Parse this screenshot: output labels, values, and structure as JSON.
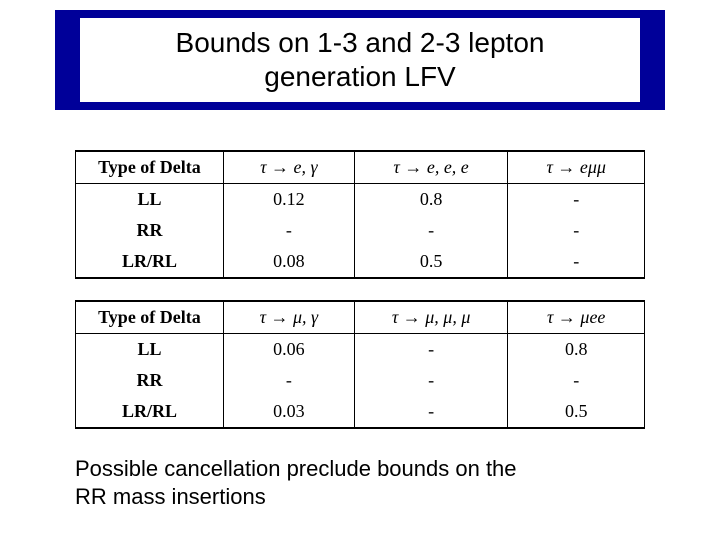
{
  "title": {
    "line1": "Bounds on 1-3 and 2-3 lepton",
    "line2": "generation LFV",
    "bg_color": "#000099",
    "text_color": "#000000"
  },
  "table1": {
    "col_header": "Type of Delta",
    "columns": [
      "τ → e, γ",
      "τ → e, e, e",
      "τ → eμμ"
    ],
    "rows": [
      {
        "label": "LL",
        "c1": "0.12",
        "c2": "0.8",
        "c3": "-"
      },
      {
        "label": "RR",
        "c1": "-",
        "c2": "-",
        "c3": "-"
      },
      {
        "label": "LR/RL",
        "c1": "0.08",
        "c2": "0.5",
        "c3": "-"
      }
    ]
  },
  "table2": {
    "col_header": "Type of Delta",
    "columns": [
      "τ → μ, γ",
      "τ → μ, μ, μ",
      "τ → μee"
    ],
    "rows": [
      {
        "label": "LL",
        "c1": "0.06",
        "c2": "-",
        "c3": "0.8"
      },
      {
        "label": "RR",
        "c1": "-",
        "c2": "-",
        "c3": "-"
      },
      {
        "label": "LR/RL",
        "c1": "0.03",
        "c2": "-",
        "c3": "0.5"
      }
    ]
  },
  "footer_note": {
    "line1": "Possible cancellation preclude bounds on the",
    "line2": "RR mass insertions"
  },
  "style": {
    "font_body": "Arial",
    "font_table": "Times New Roman",
    "border_color": "#000000",
    "background": "#ffffff"
  }
}
